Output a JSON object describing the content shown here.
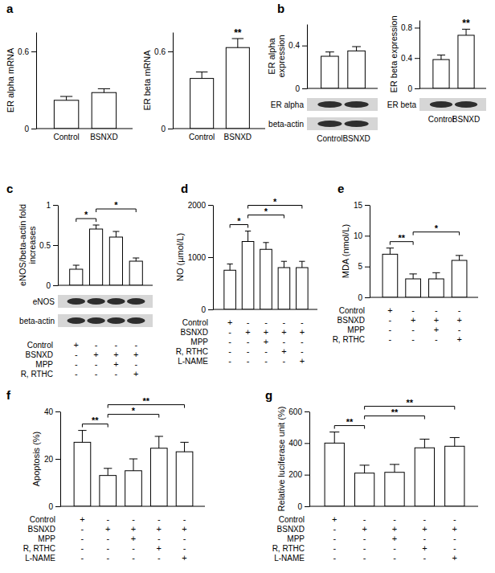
{
  "chart_data": [
    {
      "type": "bar",
      "panel": "a",
      "y_label": "ER alpha mRNA",
      "categories": [
        "Control",
        "BSNXD"
      ],
      "values": [
        0.22,
        0.28
      ],
      "errors": [
        0.03,
        0.03
      ],
      "ylim": [
        0,
        0.75
      ],
      "yticks": [
        0,
        0.6
      ],
      "color": "#ffffff"
    },
    {
      "type": "bar",
      "y_label": "ER beta mRNA",
      "categories": [
        "Control",
        "BSNXD"
      ],
      "values": [
        0.39,
        0.63
      ],
      "errors": [
        0.05,
        0.07
      ],
      "ylim": [
        0,
        0.75
      ],
      "yticks": [
        0,
        0.6
      ],
      "color": "#ffffff",
      "significance": [
        {
          "text": "**",
          "bars": [
            1
          ]
        }
      ]
    },
    {
      "type": "bar",
      "panel": "b",
      "y_label": "ER alpha expression",
      "categories": [
        "Control",
        "BSNXD"
      ],
      "values": [
        0.3,
        0.35
      ],
      "errors": [
        0.04,
        0.04
      ],
      "ylim": [
        0,
        0.6
      ],
      "yticks": [
        0,
        0.4
      ],
      "color": "#ffffff",
      "blots": [
        "ER alpha",
        "beta-actin"
      ]
    },
    {
      "type": "bar",
      "y_label": "ER beta expression",
      "categories": [
        "Control",
        "BSNXD"
      ],
      "values": [
        0.38,
        0.7
      ],
      "errors": [
        0.06,
        0.08
      ],
      "ylim": [
        0,
        0.9
      ],
      "yticks": [
        0,
        0.4,
        0.8
      ],
      "color": "#ffffff",
      "blots": [
        "ER beta"
      ],
      "significance": [
        {
          "text": "**",
          "bars": [
            1
          ]
        }
      ]
    },
    {
      "type": "bar",
      "panel": "c",
      "y_label": "eNOS/beta-actin fold increases",
      "values": [
        0.2,
        0.7,
        0.6,
        0.3
      ],
      "errors": [
        0.05,
        0.05,
        0.07,
        0.04
      ],
      "ylim": [
        0,
        1
      ],
      "yticks": [
        0,
        0.5,
        1
      ],
      "color": "#ffffff",
      "blots": [
        "eNOS",
        "beta-actin"
      ],
      "conditions": [
        {
          "label": "Control",
          "signs": [
            "+",
            "-",
            "-",
            "-"
          ]
        },
        {
          "label": "BSNXD",
          "signs": [
            "-",
            "+",
            "+",
            "+"
          ]
        },
        {
          "label": "MPP",
          "signs": [
            "-",
            "-",
            "+",
            "-"
          ]
        },
        {
          "label": "R, RTHC",
          "signs": [
            "-",
            "-",
            "-",
            "+"
          ]
        }
      ],
      "significance": [
        {
          "text": "*",
          "bars": [
            0,
            1
          ]
        },
        {
          "text": "*",
          "bars": [
            1,
            3
          ]
        }
      ]
    },
    {
      "type": "bar",
      "panel": "d",
      "y_label": "NO (µmol/L)",
      "values": [
        750,
        1300,
        1150,
        800,
        800
      ],
      "errors": [
        120,
        200,
        130,
        120,
        120
      ],
      "ylim": [
        0,
        2000
      ],
      "yticks": [
        0,
        1000,
        2000
      ],
      "color": "#ffffff",
      "conditions": [
        {
          "label": "Control",
          "signs": [
            "+",
            "-",
            "-",
            "-",
            "-"
          ]
        },
        {
          "label": "BSNXD",
          "signs": [
            "-",
            "+",
            "+",
            "+",
            "+"
          ]
        },
        {
          "label": "MPP",
          "signs": [
            "-",
            "-",
            "+",
            "-",
            "-"
          ]
        },
        {
          "label": "R, RTHC",
          "signs": [
            "-",
            "-",
            "-",
            "+",
            "-"
          ]
        },
        {
          "label": "L-NAME",
          "signs": [
            "-",
            "-",
            "-",
            "-",
            "+"
          ]
        }
      ],
      "significance": [
        {
          "text": "*",
          "bars": [
            0,
            1
          ]
        },
        {
          "text": "*",
          "bars": [
            1,
            3
          ]
        },
        {
          "text": "*",
          "bars": [
            1,
            4
          ]
        }
      ]
    },
    {
      "type": "bar",
      "panel": "e",
      "y_label": "MDA (nmol/L)",
      "values": [
        7,
        3,
        3,
        6
      ],
      "errors": [
        1,
        0.8,
        1,
        0.8
      ],
      "ylim": [
        0,
        15
      ],
      "yticks": [
        0,
        5,
        10,
        15
      ],
      "color": "#ffffff",
      "conditions": [
        {
          "label": "Control",
          "signs": [
            "+",
            "-",
            "-",
            "-"
          ]
        },
        {
          "label": "BSNXD",
          "signs": [
            "-",
            "+",
            "+",
            "+"
          ]
        },
        {
          "label": "MPP",
          "signs": [
            "-",
            "-",
            "+",
            "-"
          ]
        },
        {
          "label": "R, RTHC",
          "signs": [
            "-",
            "-",
            "-",
            "+"
          ]
        }
      ],
      "significance": [
        {
          "text": "**",
          "bars": [
            0,
            1
          ]
        },
        {
          "text": "*",
          "bars": [
            1,
            3
          ]
        }
      ]
    },
    {
      "type": "bar",
      "panel": "f",
      "y_label": "Apoptosis (%)",
      "values": [
        27,
        13,
        15,
        24.5,
        23
      ],
      "errors": [
        5,
        3,
        5,
        5,
        4
      ],
      "ylim": [
        0,
        40
      ],
      "yticks": [
        0,
        20,
        40
      ],
      "color": "#ffffff",
      "conditions": [
        {
          "label": "Control",
          "signs": [
            "+",
            "-",
            "-",
            "-",
            "-"
          ]
        },
        {
          "label": "BSNXD",
          "signs": [
            "-",
            "+",
            "+",
            "+",
            "+"
          ]
        },
        {
          "label": "MPP",
          "signs": [
            "-",
            "-",
            "+",
            "-",
            "-"
          ]
        },
        {
          "label": "R, RTHC",
          "signs": [
            "-",
            "-",
            "-",
            "+",
            "-"
          ]
        },
        {
          "label": "L-NAME",
          "signs": [
            "-",
            "-",
            "-",
            "-",
            "+"
          ]
        }
      ],
      "significance": [
        {
          "text": "**",
          "bars": [
            0,
            1
          ]
        },
        {
          "text": "*",
          "bars": [
            1,
            3
          ]
        },
        {
          "text": "**",
          "bars": [
            1,
            4
          ]
        }
      ]
    },
    {
      "type": "bar",
      "panel": "g",
      "y_label": "Relative luciferase unit (%)",
      "values": [
        400,
        210,
        215,
        370,
        380
      ],
      "errors": [
        70,
        50,
        50,
        55,
        55
      ],
      "ylim": [
        0,
        600
      ],
      "yticks": [
        0,
        200,
        400,
        600
      ],
      "color": "#ffffff",
      "conditions": [
        {
          "label": "Control",
          "signs": [
            "+",
            "-",
            "-",
            "-",
            "-"
          ]
        },
        {
          "label": "BSNXD",
          "signs": [
            "-",
            "+",
            "+",
            "+",
            "+"
          ]
        },
        {
          "label": "MPP",
          "signs": [
            "-",
            "-",
            "+",
            "-",
            "-"
          ]
        },
        {
          "label": "R, RTHC",
          "signs": [
            "-",
            "-",
            "-",
            "+",
            "-"
          ]
        },
        {
          "label": "L-NAME",
          "signs": [
            "-",
            "-",
            "-",
            "-",
            "+"
          ]
        }
      ],
      "significance": [
        {
          "text": "**",
          "bars": [
            0,
            1
          ]
        },
        {
          "text": "**",
          "bars": [
            1,
            3
          ]
        },
        {
          "text": "**",
          "bars": [
            1,
            4
          ]
        }
      ]
    }
  ]
}
